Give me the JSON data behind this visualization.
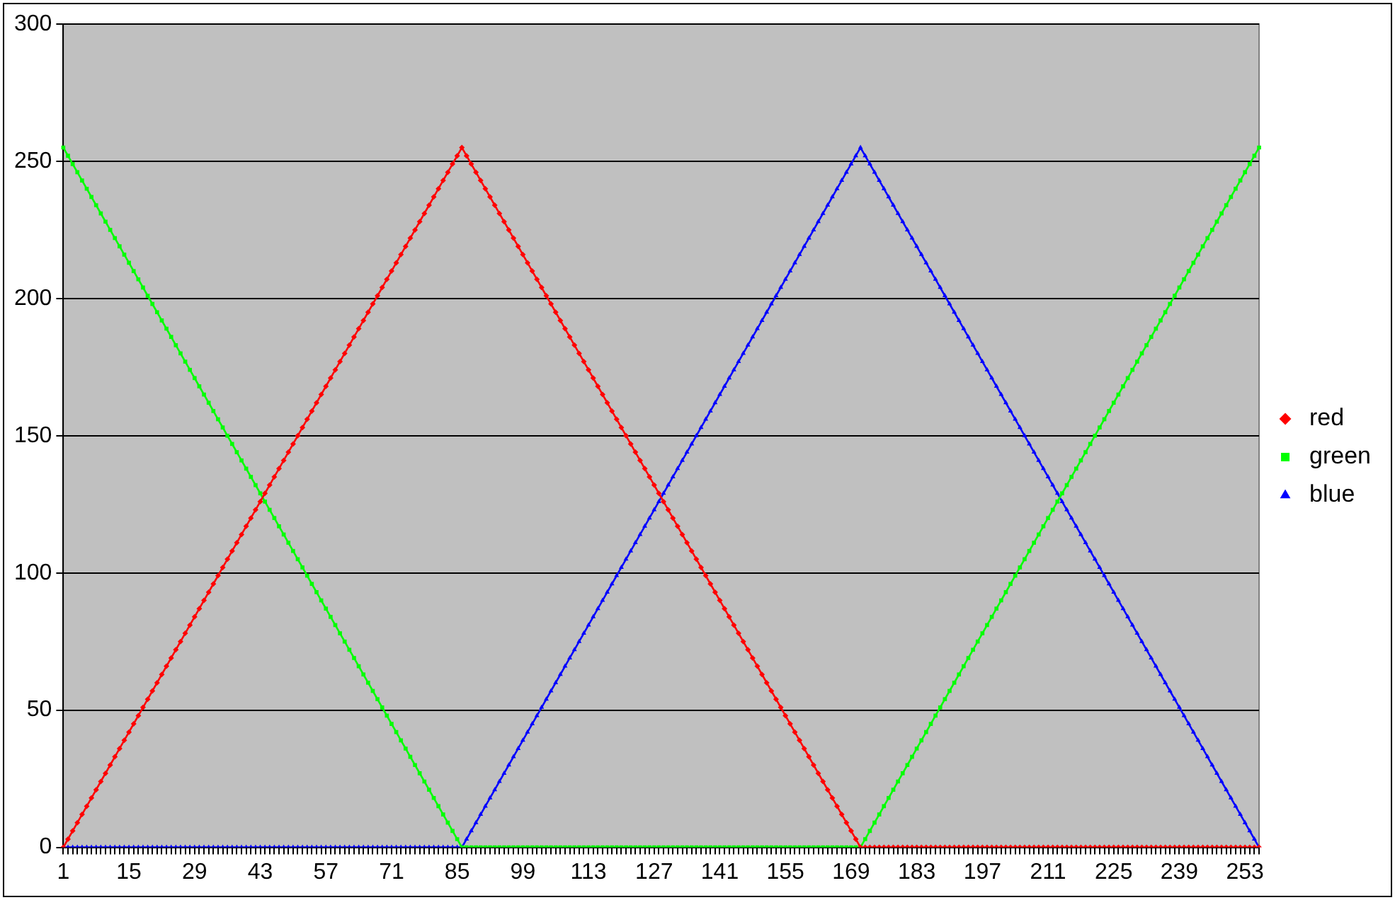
{
  "chart_data": {
    "type": "line",
    "categories": [
      "1",
      null,
      null,
      null,
      null,
      null,
      null,
      null,
      null,
      null,
      null,
      null,
      null,
      null,
      "15",
      null,
      null,
      null,
      null,
      null,
      null,
      null,
      null,
      null,
      null,
      null,
      null,
      null,
      "29",
      null,
      null,
      null,
      null,
      null,
      null,
      null,
      null,
      null,
      null,
      null,
      null,
      null,
      "43",
      null,
      null,
      null,
      null,
      null,
      null,
      null,
      null,
      null,
      null,
      null,
      null,
      null,
      "57",
      null,
      null,
      null,
      null,
      null,
      null,
      null,
      null,
      null,
      null,
      null,
      null,
      null,
      "71",
      null,
      null,
      null,
      null,
      null,
      null,
      null,
      null,
      null,
      null,
      null,
      null,
      null,
      "85",
      null,
      null,
      null,
      null,
      null,
      null,
      null,
      null,
      null,
      null,
      null,
      null,
      null,
      "99",
      null,
      null,
      null,
      null,
      null,
      null,
      null,
      null,
      null,
      null,
      null,
      null,
      null,
      "113",
      null,
      null,
      null,
      null,
      null,
      null,
      null,
      null,
      null,
      null,
      null,
      null,
      null,
      "127",
      null,
      null,
      null,
      null,
      null,
      null,
      null,
      null,
      null,
      null,
      null,
      null,
      null,
      "141",
      null,
      null,
      null,
      null,
      null,
      null,
      null,
      null,
      null,
      null,
      null,
      null,
      null,
      "155",
      null,
      null,
      null,
      null,
      null,
      null,
      null,
      null,
      null,
      null,
      null,
      null,
      null,
      "169",
      null,
      null,
      null,
      null,
      null,
      null,
      null,
      null,
      null,
      null,
      null,
      null,
      null,
      "183",
      null,
      null,
      null,
      null,
      null,
      null,
      null,
      null,
      null,
      null,
      null,
      null,
      null,
      "197",
      null,
      null,
      null,
      null,
      null,
      null,
      null,
      null,
      null,
      null,
      null,
      null,
      null,
      "211",
      null,
      null,
      null,
      null,
      null,
      null,
      null,
      null,
      null,
      null,
      null,
      null,
      null,
      "225",
      null,
      null,
      null,
      null,
      null,
      null,
      null,
      null,
      null,
      null,
      null,
      null,
      null,
      "239",
      null,
      null,
      null,
      null,
      null,
      null,
      null,
      null,
      null,
      null,
      null,
      null,
      null,
      "253",
      null,
      null,
      null
    ],
    "series": [
      {
        "name": "red",
        "color": "#ff0000",
        "marker": "diamond",
        "values": [
          0,
          3,
          6,
          9,
          12,
          15,
          18,
          21,
          24,
          27,
          30,
          33,
          36,
          39,
          42,
          45,
          48,
          51,
          54,
          57,
          60,
          63,
          66,
          69,
          72,
          75,
          78,
          81,
          84,
          87,
          90,
          93,
          96,
          99,
          102,
          105,
          108,
          111,
          114,
          117,
          120,
          123,
          126,
          129,
          132,
          135,
          138,
          141,
          144,
          147,
          150,
          153,
          156,
          159,
          162,
          165,
          168,
          171,
          174,
          177,
          180,
          183,
          186,
          189,
          192,
          195,
          198,
          201,
          204,
          207,
          210,
          213,
          216,
          219,
          222,
          225,
          228,
          231,
          234,
          237,
          240,
          243,
          246,
          249,
          252,
          255,
          252,
          249,
          246,
          243,
          240,
          237,
          234,
          231,
          228,
          225,
          222,
          219,
          216,
          213,
          210,
          207,
          204,
          201,
          198,
          195,
          192,
          189,
          186,
          183,
          180,
          177,
          174,
          171,
          168,
          165,
          162,
          159,
          156,
          153,
          150,
          147,
          144,
          141,
          138,
          135,
          132,
          129,
          126,
          123,
          120,
          117,
          114,
          111,
          108,
          105,
          102,
          99,
          96,
          93,
          90,
          87,
          84,
          81,
          78,
          75,
          72,
          69,
          66,
          63,
          60,
          57,
          54,
          51,
          48,
          45,
          42,
          39,
          36,
          33,
          30,
          27,
          24,
          21,
          18,
          15,
          12,
          9,
          6,
          3,
          0,
          0,
          0,
          0,
          0,
          0,
          0,
          0,
          0,
          0,
          0,
          0,
          0,
          0,
          0,
          0,
          0,
          0,
          0,
          0,
          0,
          0,
          0,
          0,
          0,
          0,
          0,
          0,
          0,
          0,
          0,
          0,
          0,
          0,
          0,
          0,
          0,
          0,
          0,
          0,
          0,
          0,
          0,
          0,
          0,
          0,
          0,
          0,
          0,
          0,
          0,
          0,
          0,
          0,
          0,
          0,
          0,
          0,
          0,
          0,
          0,
          0,
          0,
          0,
          0,
          0,
          0,
          0,
          0,
          0,
          0,
          0,
          0,
          0,
          0,
          0,
          0,
          0,
          0,
          0,
          0,
          0,
          0,
          0,
          0,
          0
        ]
      },
      {
        "name": "green",
        "color": "#00ff00",
        "marker": "square",
        "values": [
          255,
          252,
          249,
          246,
          243,
          240,
          237,
          234,
          231,
          228,
          225,
          222,
          219,
          216,
          213,
          210,
          207,
          204,
          201,
          198,
          195,
          192,
          189,
          186,
          183,
          180,
          177,
          174,
          171,
          168,
          165,
          162,
          159,
          156,
          153,
          150,
          147,
          144,
          141,
          138,
          135,
          132,
          129,
          126,
          123,
          120,
          117,
          114,
          111,
          108,
          105,
          102,
          99,
          96,
          93,
          90,
          87,
          84,
          81,
          78,
          75,
          72,
          69,
          66,
          63,
          60,
          57,
          54,
          51,
          48,
          45,
          42,
          39,
          36,
          33,
          30,
          27,
          24,
          21,
          18,
          15,
          12,
          9,
          6,
          3,
          0,
          0,
          0,
          0,
          0,
          0,
          0,
          0,
          0,
          0,
          0,
          0,
          0,
          0,
          0,
          0,
          0,
          0,
          0,
          0,
          0,
          0,
          0,
          0,
          0,
          0,
          0,
          0,
          0,
          0,
          0,
          0,
          0,
          0,
          0,
          0,
          0,
          0,
          0,
          0,
          0,
          0,
          0,
          0,
          0,
          0,
          0,
          0,
          0,
          0,
          0,
          0,
          0,
          0,
          0,
          0,
          0,
          0,
          0,
          0,
          0,
          0,
          0,
          0,
          0,
          0,
          0,
          0,
          0,
          0,
          0,
          0,
          0,
          0,
          0,
          0,
          0,
          0,
          0,
          0,
          0,
          0,
          0,
          0,
          0,
          0,
          3,
          6,
          9,
          12,
          15,
          18,
          21,
          24,
          27,
          30,
          33,
          36,
          39,
          42,
          45,
          48,
          51,
          54,
          57,
          60,
          63,
          66,
          69,
          72,
          75,
          78,
          81,
          84,
          87,
          90,
          93,
          96,
          99,
          102,
          105,
          108,
          111,
          114,
          117,
          120,
          123,
          126,
          129,
          132,
          135,
          138,
          141,
          144,
          147,
          150,
          153,
          156,
          159,
          162,
          165,
          168,
          171,
          174,
          177,
          180,
          183,
          186,
          189,
          192,
          195,
          198,
          201,
          204,
          207,
          210,
          213,
          216,
          219,
          222,
          225,
          228,
          231,
          234,
          237,
          240,
          243,
          246,
          249,
          252,
          255
        ]
      },
      {
        "name": "blue",
        "color": "#0000ff",
        "marker": "triangle",
        "values": [
          0,
          0,
          0,
          0,
          0,
          0,
          0,
          0,
          0,
          0,
          0,
          0,
          0,
          0,
          0,
          0,
          0,
          0,
          0,
          0,
          0,
          0,
          0,
          0,
          0,
          0,
          0,
          0,
          0,
          0,
          0,
          0,
          0,
          0,
          0,
          0,
          0,
          0,
          0,
          0,
          0,
          0,
          0,
          0,
          0,
          0,
          0,
          0,
          0,
          0,
          0,
          0,
          0,
          0,
          0,
          0,
          0,
          0,
          0,
          0,
          0,
          0,
          0,
          0,
          0,
          0,
          0,
          0,
          0,
          0,
          0,
          0,
          0,
          0,
          0,
          0,
          0,
          0,
          0,
          0,
          0,
          0,
          0,
          0,
          0,
          0,
          3,
          6,
          9,
          12,
          15,
          18,
          21,
          24,
          27,
          30,
          33,
          36,
          39,
          42,
          45,
          48,
          51,
          54,
          57,
          60,
          63,
          66,
          69,
          72,
          75,
          78,
          81,
          84,
          87,
          90,
          93,
          96,
          99,
          102,
          105,
          108,
          111,
          114,
          117,
          120,
          123,
          126,
          129,
          132,
          135,
          138,
          141,
          144,
          147,
          150,
          153,
          156,
          159,
          162,
          165,
          168,
          171,
          174,
          177,
          180,
          183,
          186,
          189,
          192,
          195,
          198,
          201,
          204,
          207,
          210,
          213,
          216,
          219,
          222,
          225,
          228,
          231,
          234,
          237,
          240,
          243,
          246,
          249,
          252,
          255,
          252,
          249,
          246,
          243,
          240,
          237,
          234,
          231,
          228,
          225,
          222,
          219,
          216,
          213,
          210,
          207,
          204,
          201,
          198,
          195,
          192,
          189,
          186,
          183,
          180,
          177,
          174,
          171,
          168,
          165,
          162,
          159,
          156,
          153,
          150,
          147,
          144,
          141,
          138,
          135,
          132,
          129,
          126,
          123,
          120,
          117,
          114,
          111,
          108,
          105,
          102,
          99,
          96,
          93,
          90,
          87,
          84,
          81,
          78,
          75,
          72,
          69,
          66,
          63,
          60,
          57,
          54,
          51,
          48,
          45,
          42,
          39,
          36,
          33,
          30,
          27,
          24,
          21,
          18,
          15,
          12,
          9,
          6,
          3,
          0
        ]
      }
    ],
    "ylim": [
      0,
      300
    ],
    "yticks": [
      0,
      50,
      100,
      150,
      200,
      250,
      300
    ],
    "grid": "y",
    "legend": "right",
    "line_style": "solid"
  }
}
